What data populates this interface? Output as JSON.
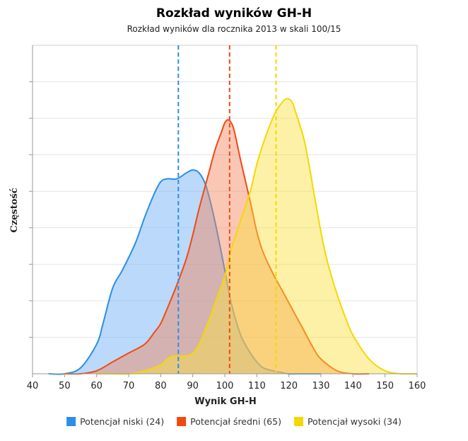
{
  "chart_data": {
    "type": "area",
    "title": "Rozkład wyników GH-H",
    "subtitle": "Rozkład wyników dla rocznika 2013 w skali 100/15",
    "xlabel": "Wynik GH-H",
    "ylabel": "Częstość",
    "xlim": [
      40,
      160
    ],
    "ylim": [
      0,
      1
    ],
    "xticks": [
      "40",
      "50",
      "60",
      "70",
      "80",
      "90",
      "100",
      "110",
      "120",
      "130",
      "140",
      "150",
      "160"
    ],
    "grid": "horizontal",
    "legend_position": "bottom",
    "series": [
      {
        "name": "Potencjał niski (24)",
        "color": "#2c8ee6",
        "fill": "rgba(120,180,245,0.5)",
        "mean": 85.5,
        "x": [
          45,
          50,
          55,
          60,
          62,
          65,
          68,
          72,
          75,
          78,
          80,
          82,
          85,
          88,
          90,
          92,
          94,
          96,
          98,
          100,
          102,
          105,
          108,
          110,
          112,
          115,
          118,
          120,
          125,
          130
        ],
        "y": [
          0,
          0,
          0.02,
          0.1,
          0.17,
          0.29,
          0.35,
          0.44,
          0.53,
          0.61,
          0.65,
          0.66,
          0.66,
          0.68,
          0.69,
          0.68,
          0.64,
          0.56,
          0.46,
          0.35,
          0.24,
          0.13,
          0.07,
          0.04,
          0.02,
          0.01,
          0.004,
          0,
          0,
          0
        ]
      },
      {
        "name": "Potencjał średni (65)",
        "color": "#f04a12",
        "fill": "rgba(245,130,90,0.45)",
        "mean": 101.5,
        "x": [
          50,
          55,
          60,
          65,
          70,
          75,
          78,
          80,
          82,
          85,
          88,
          90,
          92,
          95,
          97,
          99,
          100,
          101,
          102,
          103,
          105,
          108,
          110,
          112,
          115,
          118,
          120,
          122,
          125,
          128,
          130,
          135,
          140,
          145
        ],
        "y": [
          0,
          0,
          0.01,
          0.04,
          0.07,
          0.1,
          0.14,
          0.17,
          0.22,
          0.3,
          0.39,
          0.47,
          0.56,
          0.68,
          0.76,
          0.82,
          0.85,
          0.86,
          0.85,
          0.82,
          0.72,
          0.58,
          0.48,
          0.41,
          0.34,
          0.28,
          0.24,
          0.2,
          0.14,
          0.08,
          0.05,
          0.01,
          0,
          0
        ]
      },
      {
        "name": "Potencjał wysoki (34)",
        "color": "#f5d800",
        "fill": "rgba(250,225,60,0.45)",
        "mean": 116,
        "x": [
          60,
          65,
          70,
          75,
          80,
          82,
          84,
          86,
          88,
          90,
          92,
          95,
          98,
          100,
          102,
          105,
          108,
          110,
          112,
          114,
          116,
          118,
          119,
          120,
          121,
          122,
          125,
          128,
          130,
          132,
          135,
          138,
          140,
          145,
          150,
          155,
          160
        ],
        "y": [
          0,
          0,
          0,
          0.01,
          0.03,
          0.05,
          0.06,
          0.06,
          0.06,
          0.07,
          0.1,
          0.18,
          0.27,
          0.33,
          0.42,
          0.52,
          0.62,
          0.71,
          0.78,
          0.84,
          0.89,
          0.92,
          0.93,
          0.93,
          0.92,
          0.89,
          0.78,
          0.6,
          0.48,
          0.38,
          0.27,
          0.18,
          0.13,
          0.05,
          0.01,
          0,
          0
        ]
      }
    ]
  }
}
